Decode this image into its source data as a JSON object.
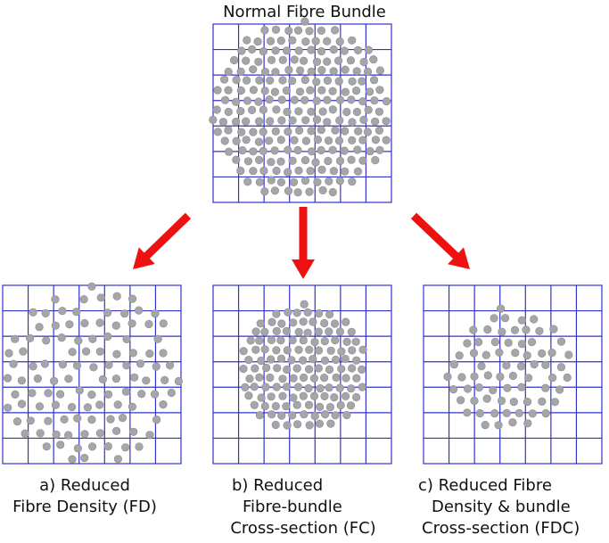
{
  "title": "Normal Fibre Bundle",
  "colors": {
    "grid": "#3333cc",
    "fibre_fill": "#a6a6aa",
    "fibre_stroke": "#8c8c90",
    "arrow": "#ee1111",
    "text": "#111111"
  },
  "panels": {
    "normal": {
      "label": "Normal Fibre Bundle"
    },
    "a": {
      "line1": "a) Reduced",
      "line2": "Fibre Density (FD)"
    },
    "b": {
      "line1": "b) Reduced",
      "line2": "Fibre-bundle",
      "line3": "Cross-section (FC)"
    },
    "c": {
      "line1": "c) Reduced Fibre",
      "line2": "Density & bundle",
      "line3": "Cross-section (FDC)"
    }
  }
}
